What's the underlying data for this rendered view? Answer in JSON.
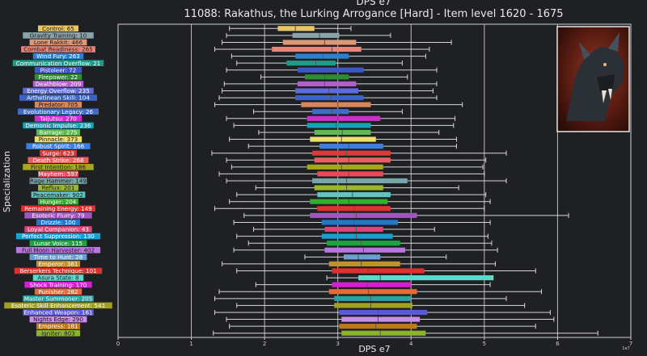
{
  "chart_data": {
    "type": "boxplot",
    "title": "11088: Rakathus, the Lurking Arrogance [Hard] - Item level 1620 - 1675",
    "top_title": "DPS e7",
    "xlabel": "DPS e7",
    "ylabel": "Specialization",
    "x_exponent": "1e7",
    "xlim": [
      0,
      7
    ],
    "x_ticks": [
      "0",
      "1",
      "2",
      "3",
      "4",
      "5",
      "6",
      "7"
    ],
    "grid": "vertical",
    "boss_image": "rakathus-portrait",
    "categories": [
      {
        "label": "Control: 65",
        "color": "#e8c56a",
        "whisker": [
          1.52,
          3.18
        ],
        "box": [
          2.18,
          2.68
        ],
        "median": 2.42
      },
      {
        "label": "Gravity Training: 10",
        "color": "#8aa3a8",
        "whisker": [
          1.48,
          3.72
        ],
        "box": [
          2.38,
          3.02
        ],
        "median": 2.75
      },
      {
        "label": "Lone Rakkit: 466",
        "color": "#dd9877",
        "whisker": [
          1.42,
          4.55
        ],
        "box": [
          2.25,
          3.25
        ],
        "median": 2.82
      },
      {
        "label": "Combat Readiness: 265",
        "color": "#e8867a",
        "whisker": [
          1.32,
          4.25
        ],
        "box": [
          2.1,
          3.32
        ],
        "median": 2.92
      },
      {
        "label": "Wind Fury: 263",
        "color": "#2d7fd0",
        "whisker": [
          1.55,
          4.2
        ],
        "box": [
          2.42,
          3.15
        ],
        "median": 2.8
      },
      {
        "label": "Communication Overflow: 21",
        "color": "#1f9c87",
        "whisker": [
          1.62,
          3.88
        ],
        "box": [
          2.3,
          2.97
        ],
        "median": 2.7
      },
      {
        "label": "Pistoleer: 72",
        "color": "#3a58c9",
        "whisker": [
          1.48,
          4.35
        ],
        "box": [
          2.45,
          3.35
        ],
        "median": 2.88
      },
      {
        "label": "Firepower: 22",
        "color": "#2e8c32",
        "whisker": [
          1.95,
          3.95
        ],
        "box": [
          2.55,
          3.15
        ],
        "median": 2.82
      },
      {
        "label": "Deathblow: 209",
        "color": "#b25ed0",
        "whisker": [
          1.45,
          4.35
        ],
        "box": [
          2.45,
          3.25
        ],
        "median": 2.82
      },
      {
        "label": "Energy Overflow: 235",
        "color": "#5f6bd6",
        "whisker": [
          1.42,
          4.3
        ],
        "box": [
          2.42,
          3.28
        ],
        "median": 2.88
      },
      {
        "label": "Arthetinean Skill: 104",
        "color": "#3d62c7",
        "whisker": [
          1.38,
          4.35
        ],
        "box": [
          2.42,
          3.35
        ],
        "median": 2.9
      },
      {
        "label": "Predator: 705",
        "color": "#d9865a",
        "whisker": [
          1.32,
          4.7
        ],
        "box": [
          2.5,
          3.45
        ],
        "median": 3.0
      },
      {
        "label": "Evolutionary Legacy: 26",
        "color": "#3f6dc4",
        "whisker": [
          1.85,
          3.88
        ],
        "box": [
          2.65,
          3.15
        ],
        "median": 2.92
      },
      {
        "label": "Taijutsu: 270",
        "color": "#cc2fcc",
        "whisker": [
          1.48,
          4.6
        ],
        "box": [
          2.58,
          3.58
        ],
        "median": 3.0
      },
      {
        "label": "Demonic Impulse: 236",
        "color": "#15a3b8",
        "whisker": [
          1.58,
          4.58
        ],
        "box": [
          2.58,
          3.45
        ],
        "median": 2.98
      },
      {
        "label": "Barrage: 275",
        "color": "#5bbb4f",
        "whisker": [
          1.92,
          4.38
        ],
        "box": [
          2.68,
          3.45
        ],
        "median": 3.06
      },
      {
        "label": "Pinnacle: 373",
        "color": "#ede06a",
        "whisker": [
          1.52,
          4.62
        ],
        "box": [
          2.62,
          3.52
        ],
        "median": 3.05
      },
      {
        "label": "Robust Spirit: 166",
        "color": "#3c7fe0",
        "whisker": [
          1.78,
          4.62
        ],
        "box": [
          2.75,
          3.62
        ],
        "median": 3.15
      },
      {
        "label": "Surge: 623",
        "color": "#d93a3a",
        "whisker": [
          1.28,
          5.3
        ],
        "box": [
          2.65,
          3.72
        ],
        "median": 3.12
      },
      {
        "label": "Death Strike: 268",
        "color": "#e86060",
        "whisker": [
          1.48,
          5.02
        ],
        "box": [
          2.68,
          3.72
        ],
        "median": 3.15
      },
      {
        "label": "First Intention: 186",
        "color": "#a3a81c",
        "whisker": [
          1.55,
          4.98
        ],
        "box": [
          2.58,
          3.62
        ],
        "median": 3.05
      },
      {
        "label": "Mayhem: 597",
        "color": "#e84a5a",
        "whisker": [
          1.38,
          5.0
        ],
        "box": [
          2.72,
          3.62
        ],
        "median": 3.15
      },
      {
        "label": "Rage Hammer: 149",
        "color": "#77a6a8",
        "whisker": [
          1.48,
          5.3
        ],
        "box": [
          2.65,
          3.95
        ],
        "median": 3.12
      },
      {
        "label": "Reflux: 201",
        "color": "#9bb82a",
        "whisker": [
          1.88,
          4.65
        ],
        "box": [
          2.68,
          3.62
        ],
        "median": 3.12
      },
      {
        "label": "Peacemaker: 902",
        "color": "#5fc6c0",
        "whisker": [
          1.62,
          5.02
        ],
        "box": [
          2.72,
          3.72
        ],
        "median": 3.2
      },
      {
        "label": "Hunger: 204",
        "color": "#2fb02f",
        "whisker": [
          1.52,
          5.08
        ],
        "box": [
          2.62,
          3.68
        ],
        "median": 3.15
      },
      {
        "label": "Remaining Energy: 149",
        "color": "#e23030",
        "whisker": [
          1.32,
          5.0
        ],
        "box": [
          2.72,
          3.72
        ],
        "median": 3.22
      },
      {
        "label": "Esoteric Flurry: 79",
        "color": "#a454c2",
        "whisker": [
          1.72,
          6.15
        ],
        "box": [
          2.62,
          4.08
        ],
        "median": 3.25
      },
      {
        "label": "Drizzle: 100",
        "color": "#2378c8",
        "whisker": [
          1.58,
          5.08
        ],
        "box": [
          2.78,
          3.82
        ],
        "median": 3.22
      },
      {
        "label": "Loyal Companion: 43",
        "color": "#df4278",
        "whisker": [
          1.85,
          4.32
        ],
        "box": [
          2.82,
          3.62
        ],
        "median": 3.25
      },
      {
        "label": "Perfect Suppression: 130",
        "color": "#1a9fd0",
        "whisker": [
          1.62,
          5.05
        ],
        "box": [
          2.78,
          3.75
        ],
        "median": 3.25
      },
      {
        "label": "Lunar Voice: 115",
        "color": "#1fa340",
        "whisker": [
          1.78,
          5.1
        ],
        "box": [
          2.85,
          3.85
        ],
        "median": 3.32
      },
      {
        "label": "Full Moon Harvester: 402",
        "color": "#ba76e0",
        "whisker": [
          1.58,
          5.18
        ],
        "box": [
          2.82,
          3.92
        ],
        "median": 3.35
      },
      {
        "label": "Time to Hunt: 28",
        "color": "#6a9fd5",
        "whisker": [
          2.55,
          4.48
        ],
        "box": [
          3.08,
          3.58
        ],
        "median": 3.28
      },
      {
        "label": "Emperor: 381",
        "color": "#c2922a",
        "whisker": [
          1.42,
          5.15
        ],
        "box": [
          2.88,
          3.85
        ],
        "median": 3.32
      },
      {
        "label": "Berserkers Technique: 101",
        "color": "#e0302e",
        "whisker": [
          1.62,
          5.7
        ],
        "box": [
          2.92,
          4.18
        ],
        "median": 3.42
      },
      {
        "label": "Asura State: 8",
        "color": "#5ed8cc",
        "whisker": [
          2.85,
          5.12
        ],
        "box": [
          3.28,
          5.12
        ],
        "median": 3.58
      },
      {
        "label": "Shock Training: 170",
        "color": "#d420d4",
        "whisker": [
          1.88,
          5.08
        ],
        "box": [
          2.92,
          4.0
        ],
        "median": 3.4
      },
      {
        "label": "Punisher: 282",
        "color": "#e86a3a",
        "whisker": [
          1.38,
          5.78
        ],
        "box": [
          2.88,
          4.08
        ],
        "median": 3.42
      },
      {
        "label": "Master Summoner: 205",
        "color": "#28a2a2",
        "whisker": [
          1.32,
          5.3
        ],
        "box": [
          2.95,
          4.0
        ],
        "median": 3.45
      },
      {
        "label": "Esoteric Skill Enhancement: 541",
        "color": "#a2a020",
        "whisker": [
          1.62,
          5.55
        ],
        "box": [
          2.95,
          4.02
        ],
        "median": 3.45
      },
      {
        "label": "Enhanced Weapon: 161",
        "color": "#5c5ad8",
        "whisker": [
          1.32,
          5.9
        ],
        "box": [
          3.02,
          4.22
        ],
        "median": 3.55
      },
      {
        "label": "Nights Edge: 290",
        "color": "#c98ee8",
        "whisker": [
          1.48,
          5.95
        ],
        "box": [
          3.05,
          4.12
        ],
        "median": 3.55
      },
      {
        "label": "Empress: 181",
        "color": "#c0781c",
        "whisker": [
          1.52,
          5.7
        ],
        "box": [
          3.02,
          4.08
        ],
        "median": 3.52
      },
      {
        "label": "Igniter: 803",
        "color": "#8cb428",
        "whisker": [
          1.3,
          6.55
        ],
        "box": [
          3.05,
          4.2
        ],
        "median": 3.58
      }
    ]
  }
}
